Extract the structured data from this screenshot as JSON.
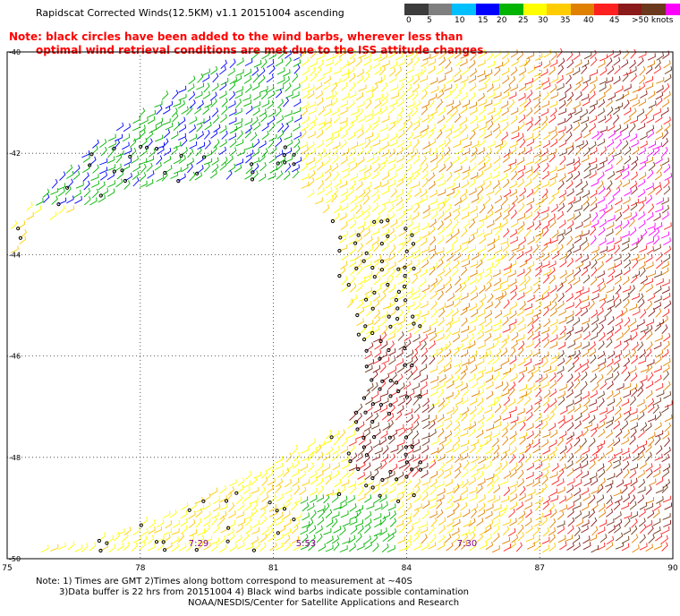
{
  "title": "Rapidscat Corrected Winds(12.5KM) v1.1 20151004 ascending",
  "note_line1": "Note: black circles have been added to the wind barbs, wherever less than",
  "note_line2": "optimal wind retrieval conditions are met due to the ISS attitude changes.",
  "legend": {
    "labels": [
      "0",
      "5",
      "10",
      "15",
      "20",
      "25",
      "30",
      "35",
      "40",
      "45",
      ">50 knots"
    ],
    "colors": [
      "#3c3c3c",
      "#7f7f7f",
      "#00bfff",
      "#0000ff",
      "#00b400",
      "#ffff00",
      "#ffcc00",
      "#e08000",
      "#ff2020",
      "#8b1a1a",
      "#6b3a1e",
      "#ff00ff",
      "#7b00d0"
    ]
  },
  "axes": {
    "x_ticks": [
      "75",
      "78",
      "81",
      "84",
      "87",
      "90"
    ],
    "y_ticks": [
      "-40",
      "-42",
      "-44",
      "-46",
      "-48",
      "-50"
    ]
  },
  "time_labels": [
    "7:29",
    "5:53",
    "7:30"
  ],
  "footer": {
    "line1": "Note: 1) Times are GMT 2)Times along bottom correspond to measurement at ~40S",
    "line2": "3)Data buffer is 22 hrs from 20151004 4) Black wind barbs indicate possible contamination",
    "line3": "NOAA/NESDIS/Center for Satellite Applications and Research"
  }
}
